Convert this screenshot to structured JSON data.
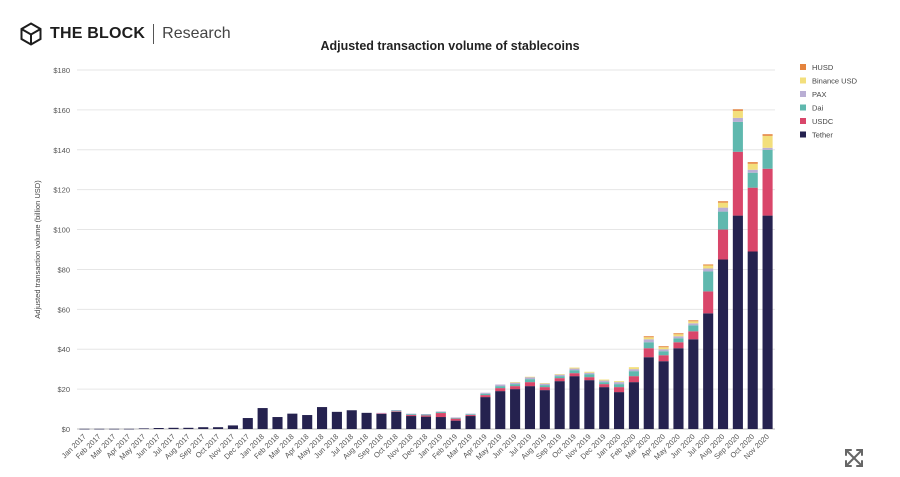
{
  "brand": {
    "name": "THE BLOCK",
    "subtitle": "Research",
    "icon": "hexagon-cube-logo"
  },
  "expand_button": {
    "icon": "expand-arrows-icon"
  },
  "chart_data": {
    "type": "bar",
    "stacked": true,
    "title": "Adjusted transaction volume of stablecoins",
    "xlabel": "",
    "ylabel": "Adjusted transaction volume (billion USD)",
    "ylim": [
      0,
      180
    ],
    "yticks": [
      0,
      20,
      40,
      60,
      80,
      100,
      120,
      140,
      160,
      180
    ],
    "ytick_labels": [
      "$0",
      "$20",
      "$40",
      "$60",
      "$80",
      "$100",
      "$120",
      "$140",
      "$160",
      "$180"
    ],
    "grid": true,
    "legend_position": "top-right",
    "categories": [
      "Jan 2017",
      "Feb 2017",
      "Mar 2017",
      "Apr 2017",
      "May 2017",
      "Jun 2017",
      "Jul 2017",
      "Aug 2017",
      "Sep 2017",
      "Oct 2017",
      "Nov 2017",
      "Dec 2017",
      "Jan 2018",
      "Feb 2018",
      "Mar 2018",
      "Apr 2018",
      "May 2018",
      "Jun 2018",
      "Jul 2018",
      "Aug 2018",
      "Sep 2018",
      "Oct 2018",
      "Nov 2018",
      "Dec 2018",
      "Jan 2019",
      "Feb 2019",
      "Mar 2019",
      "Apr 2019",
      "May 2019",
      "Jun 2019",
      "Jul 2019",
      "Aug 2019",
      "Sep 2019",
      "Oct 2019",
      "Nov 2019",
      "Dec 2019",
      "Jan 2020",
      "Feb 2020",
      "Mar 2020",
      "Apr 2020",
      "May 2020",
      "Jun 2020",
      "Jul 2020",
      "Aug 2020",
      "Sep 2020",
      "Oct 2020",
      "Nov 2020"
    ],
    "series": [
      {
        "name": "Tether",
        "color": "#25224f",
        "values": [
          0.1,
          0.1,
          0.1,
          0.1,
          0.3,
          0.5,
          0.6,
          0.6,
          0.9,
          0.9,
          1.8,
          5.5,
          10.5,
          6.0,
          7.7,
          7.0,
          11.0,
          8.6,
          9.4,
          8.1,
          7.6,
          8.6,
          6.5,
          6.2,
          6.0,
          4.2,
          6.5,
          16.0,
          19.0,
          20.0,
          21.5,
          19.5,
          24.0,
          26.5,
          24.5,
          21.0,
          18.5,
          23.5,
          36.0,
          34.0,
          40.5,
          45.0,
          58.0,
          85.0,
          107.0,
          89.0,
          107.0
        ]
      },
      {
        "name": "USDC",
        "color": "#d9466a",
        "values": [
          0,
          0,
          0,
          0,
          0,
          0,
          0,
          0,
          0,
          0,
          0,
          0,
          0,
          0,
          0,
          0,
          0,
          0,
          0,
          0,
          0.3,
          0.3,
          0.5,
          0.6,
          2.0,
          1.0,
          0.5,
          1.0,
          1.5,
          1.5,
          2.0,
          1.5,
          1.5,
          1.5,
          1.5,
          1.5,
          2.5,
          3.0,
          4.5,
          3.0,
          3.0,
          4.0,
          11.0,
          15.0,
          32.0,
          32.0,
          23.5
        ]
      },
      {
        "name": "Dai",
        "color": "#5fb8ae",
        "values": [
          0,
          0,
          0,
          0,
          0,
          0,
          0,
          0,
          0,
          0,
          0,
          0,
          0,
          0,
          0,
          0,
          0,
          0,
          0,
          0,
          0,
          0.4,
          0.5,
          0.5,
          0.5,
          0.3,
          0.4,
          0.7,
          1.0,
          1.0,
          1.5,
          1.0,
          1.0,
          1.5,
          1.5,
          1.0,
          1.5,
          2.5,
          3.0,
          2.0,
          2.0,
          3.0,
          10.0,
          9.0,
          15.0,
          7.5,
          9.5
        ]
      },
      {
        "name": "PAX",
        "color": "#b9aed4",
        "values": [
          0,
          0,
          0,
          0,
          0,
          0,
          0,
          0,
          0,
          0,
          0,
          0,
          0,
          0,
          0,
          0,
          0,
          0,
          0,
          0,
          0.2,
          0.2,
          0.2,
          0.2,
          0.3,
          0.3,
          0.3,
          0.5,
          0.8,
          0.8,
          1.0,
          0.8,
          0.8,
          0.8,
          0.7,
          0.8,
          1.0,
          1.0,
          1.5,
          1.0,
          1.0,
          1.0,
          1.5,
          2.0,
          2.0,
          1.5,
          1.0
        ]
      },
      {
        "name": "Binance USD",
        "color": "#f3df7c",
        "values": [
          0,
          0,
          0,
          0,
          0,
          0,
          0,
          0,
          0,
          0,
          0,
          0,
          0,
          0,
          0,
          0,
          0,
          0,
          0,
          0,
          0,
          0,
          0,
          0,
          0,
          0,
          0,
          0,
          0,
          0.2,
          0.2,
          0.2,
          0.2,
          0.5,
          0.5,
          0.5,
          0.5,
          1.0,
          1.0,
          1.0,
          1.0,
          1.0,
          1.5,
          2.5,
          3.5,
          3.0,
          6.0
        ]
      },
      {
        "name": "HUSD",
        "color": "#e4833d",
        "values": [
          0,
          0,
          0,
          0,
          0,
          0,
          0,
          0,
          0,
          0,
          0,
          0,
          0,
          0,
          0,
          0,
          0,
          0,
          0,
          0,
          0,
          0,
          0,
          0,
          0,
          0,
          0,
          0,
          0,
          0,
          0,
          0,
          0,
          0,
          0,
          0,
          0,
          0,
          0.5,
          0.5,
          0.5,
          0.5,
          0.5,
          0.7,
          0.8,
          0.8,
          0.8
        ]
      }
    ]
  }
}
